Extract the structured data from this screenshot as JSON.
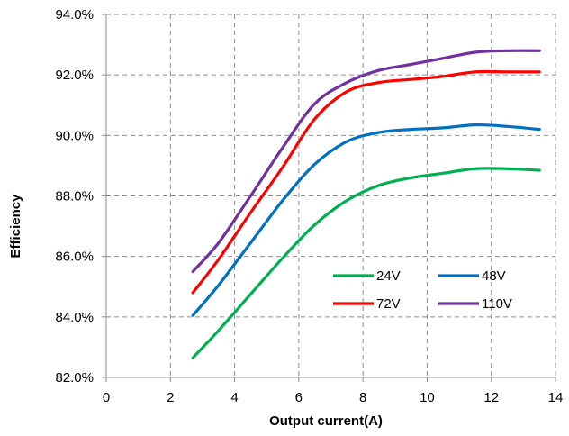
{
  "chart_data": {
    "type": "line",
    "title": "",
    "xlabel": "Output current(A)",
    "ylabel": "Efficiency",
    "xlim": [
      0,
      14
    ],
    "ylim": [
      82.0,
      94.0
    ],
    "x_ticks": [
      0,
      2,
      4,
      6,
      8,
      10,
      12,
      14
    ],
    "x_tick_labels": [
      "0",
      "2",
      "4",
      "6",
      "8",
      "10",
      "12",
      "14"
    ],
    "y_ticks": [
      82,
      84,
      86,
      88,
      90,
      92,
      94
    ],
    "y_tick_labels": [
      "82.0%",
      "84.0%",
      "86.0%",
      "88.0%",
      "90.0%",
      "92.0%",
      "94.0%"
    ],
    "grid": true,
    "legend_position": "bottom-right",
    "series": [
      {
        "name": "24V",
        "color": "#00b050",
        "x": [
          2.7,
          3.5,
          4.5,
          5.5,
          6.5,
          7.5,
          8.5,
          9.5,
          10.5,
          11.5,
          12.5,
          13.5
        ],
        "values": [
          82.65,
          83.55,
          84.75,
          85.95,
          87.05,
          87.85,
          88.35,
          88.6,
          88.75,
          88.9,
          88.9,
          88.85
        ]
      },
      {
        "name": "48V",
        "color": "#0070c0",
        "x": [
          2.7,
          3.5,
          4.5,
          5.5,
          6.5,
          7.5,
          8.5,
          9.5,
          10.5,
          11.5,
          12.5,
          13.5
        ],
        "values": [
          84.05,
          85.05,
          86.45,
          87.85,
          89.05,
          89.8,
          90.1,
          90.2,
          90.25,
          90.35,
          90.3,
          90.2
        ]
      },
      {
        "name": "72V",
        "color": "#ff0000",
        "x": [
          2.7,
          3.5,
          4.5,
          5.5,
          6.5,
          7.5,
          8.5,
          9.5,
          10.5,
          11.5,
          12.5,
          13.5
        ],
        "values": [
          84.8,
          85.9,
          87.45,
          88.95,
          90.55,
          91.45,
          91.75,
          91.85,
          91.95,
          92.1,
          92.1,
          92.1
        ]
      },
      {
        "name": "110V",
        "color": "#7030a0",
        "x": [
          2.7,
          3.5,
          4.5,
          5.5,
          6.5,
          7.5,
          8.5,
          9.5,
          10.5,
          11.5,
          12.5,
          13.5
        ],
        "values": [
          85.5,
          86.45,
          88.0,
          89.6,
          91.05,
          91.75,
          92.15,
          92.35,
          92.55,
          92.75,
          92.8,
          92.8
        ]
      }
    ]
  }
}
